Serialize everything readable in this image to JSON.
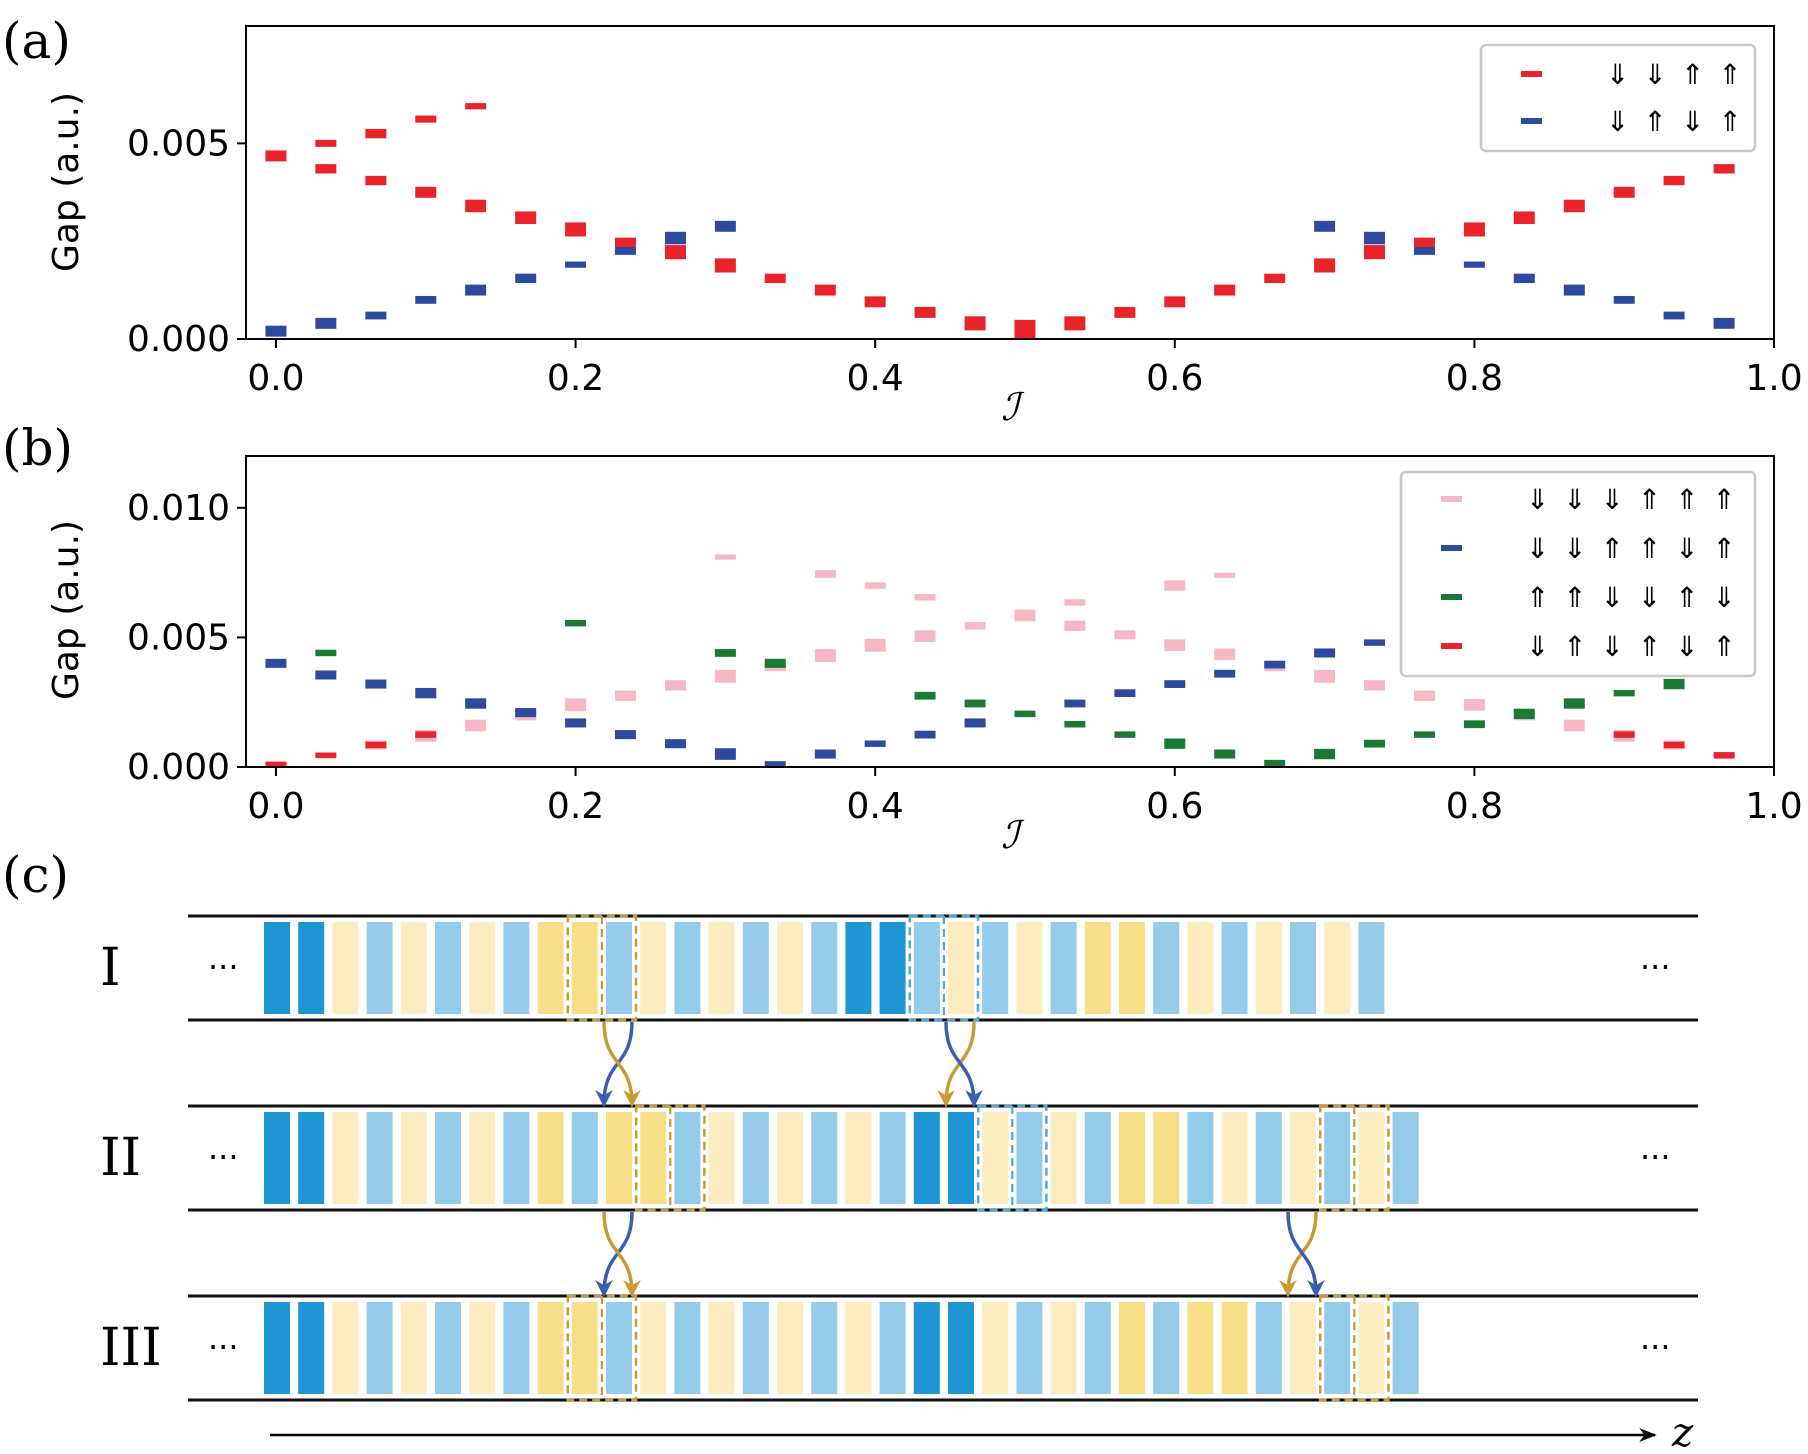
{
  "panel_labels": {
    "a": "(a)",
    "b": "(b)",
    "c": "(c)"
  },
  "chart_data": [
    {
      "type": "scatter",
      "id": "a",
      "title": "",
      "xlabel": "ℐ",
      "ylabel": "Gap (a.u.)",
      "xlim": [
        -0.02,
        1.0
      ],
      "ylim": [
        0,
        0.008
      ],
      "xticks": [
        0.0,
        0.2,
        0.4,
        0.6,
        0.8,
        1.0
      ],
      "xtick_labels": [
        "0.0",
        "0.2",
        "0.4",
        "0.6",
        "0.8",
        "1.0"
      ],
      "yticks": [
        0.0,
        0.005
      ],
      "ytick_labels": [
        "0.000",
        "0.005"
      ],
      "legend_position": "top-right",
      "series": [
        {
          "name": "⇓ ⇓ ⇑ ⇑",
          "color": "#e8232a",
          "points": [
            [
              0.0,
              0.00468,
              0.00028
            ],
            [
              0.0333,
              0.005,
              0.00018
            ],
            [
              0.0333,
              0.00435,
              0.00024
            ],
            [
              0.0667,
              0.00525,
              0.00024
            ],
            [
              0.0667,
              0.00405,
              0.00024
            ],
            [
              0.1,
              0.00562,
              0.00018
            ],
            [
              0.1,
              0.00375,
              0.00028
            ],
            [
              0.1333,
              0.00595,
              0.00016
            ],
            [
              0.1333,
              0.0034,
              0.00032
            ],
            [
              0.1667,
              0.0031,
              0.00032
            ],
            [
              0.2,
              0.0028,
              0.00036
            ],
            [
              0.2333,
              0.00245,
              0.00028
            ],
            [
              0.2667,
              0.00222,
              0.00036
            ],
            [
              0.3,
              0.00188,
              0.00036
            ],
            [
              0.3333,
              0.00155,
              0.00024
            ],
            [
              0.3667,
              0.00125,
              0.00028
            ],
            [
              0.4,
              0.00095,
              0.00028
            ],
            [
              0.4333,
              0.00068,
              0.00028
            ],
            [
              0.4667,
              0.0004,
              0.00036
            ],
            [
              0.5,
              0.00025,
              0.00048
            ],
            [
              0.5333,
              0.0004,
              0.00036
            ],
            [
              0.5667,
              0.00068,
              0.00028
            ],
            [
              0.6,
              0.00095,
              0.00028
            ],
            [
              0.6333,
              0.00125,
              0.00028
            ],
            [
              0.6667,
              0.00155,
              0.00024
            ],
            [
              0.7,
              0.00188,
              0.00036
            ],
            [
              0.7333,
              0.00222,
              0.00036
            ],
            [
              0.7667,
              0.00245,
              0.00028
            ],
            [
              0.8,
              0.0028,
              0.00036
            ],
            [
              0.8333,
              0.0031,
              0.00032
            ],
            [
              0.8667,
              0.0034,
              0.00032
            ],
            [
              0.9,
              0.00375,
              0.00028
            ],
            [
              0.9333,
              0.00405,
              0.00024
            ],
            [
              0.9667,
              0.00435,
              0.00024
            ]
          ]
        },
        {
          "name": "⇓ ⇑ ⇓ ⇑",
          "color": "#2e4a9e",
          "points": [
            [
              0.0,
              0.0002,
              0.00028
            ],
            [
              0.0333,
              0.0004,
              0.00028
            ],
            [
              0.0667,
              0.0006,
              0.0002
            ],
            [
              0.1,
              0.001,
              0.0002
            ],
            [
              0.1333,
              0.00125,
              0.00028
            ],
            [
              0.1667,
              0.00155,
              0.00024
            ],
            [
              0.2,
              0.0019,
              0.00016
            ],
            [
              0.2333,
              0.00225,
              0.0002
            ],
            [
              0.2667,
              0.00258,
              0.00032
            ],
            [
              0.3,
              0.00288,
              0.00028
            ],
            [
              0.7,
              0.00288,
              0.00028
            ],
            [
              0.7333,
              0.00258,
              0.00032
            ],
            [
              0.7667,
              0.00225,
              0.0002
            ],
            [
              0.8,
              0.0019,
              0.00016
            ],
            [
              0.8333,
              0.00155,
              0.00024
            ],
            [
              0.8667,
              0.00125,
              0.00028
            ],
            [
              0.9,
              0.001,
              0.0002
            ],
            [
              0.9333,
              0.0006,
              0.0002
            ],
            [
              0.9667,
              0.0004,
              0.00028
            ]
          ]
        }
      ]
    },
    {
      "type": "scatter",
      "id": "b",
      "title": "",
      "xlabel": "ℐ",
      "ylabel": "Gap (a.u.)",
      "xlim": [
        -0.02,
        1.0
      ],
      "ylim": [
        0,
        0.012
      ],
      "xticks": [
        0.0,
        0.2,
        0.4,
        0.6,
        0.8,
        1.0
      ],
      "xtick_labels": [
        "0.0",
        "0.2",
        "0.4",
        "0.6",
        "0.8",
        "1.0"
      ],
      "yticks": [
        0.0,
        0.005,
        0.01
      ],
      "ytick_labels": [
        "0.000",
        "0.005",
        "0.010"
      ],
      "legend_position": "top-right",
      "series": [
        {
          "name": "⇓ ⇓ ⇓ ⇑ ⇑ ⇑",
          "color": "#f7b8c6",
          "points": [
            [
              0.0,
              0.0001,
              0.00025
            ],
            [
              0.0333,
              0.00045,
              0.00025
            ],
            [
              0.0667,
              0.00085,
              0.00035
            ],
            [
              0.1,
              0.0012,
              0.00045
            ],
            [
              0.1333,
              0.0016,
              0.00045
            ],
            [
              0.1667,
              0.002,
              0.0004
            ],
            [
              0.2,
              0.0024,
              0.0005
            ],
            [
              0.2333,
              0.00275,
              0.0004
            ],
            [
              0.2667,
              0.00315,
              0.0004
            ],
            [
              0.3,
              0.0035,
              0.0005
            ],
            [
              0.3,
              0.0081,
              0.0002
            ],
            [
              0.3333,
              0.00385,
              0.0003
            ],
            [
              0.3667,
              0.0043,
              0.0005
            ],
            [
              0.3667,
              0.00745,
              0.0003
            ],
            [
              0.4,
              0.0047,
              0.0005
            ],
            [
              0.4,
              0.007,
              0.00025
            ],
            [
              0.4333,
              0.00505,
              0.00045
            ],
            [
              0.4333,
              0.00655,
              0.00025
            ],
            [
              0.4667,
              0.00545,
              0.0003
            ],
            [
              0.5,
              0.00585,
              0.00045
            ],
            [
              0.5333,
              0.00545,
              0.0004
            ],
            [
              0.5333,
              0.00635,
              0.00025
            ],
            [
              0.5667,
              0.0051,
              0.00035
            ],
            [
              0.6,
              0.0047,
              0.00045
            ],
            [
              0.6,
              0.007,
              0.0004
            ],
            [
              0.6333,
              0.00435,
              0.00045
            ],
            [
              0.6333,
              0.0074,
              0.0002
            ],
            [
              0.6667,
              0.00385,
              0.0003
            ],
            [
              0.7,
              0.0035,
              0.0005
            ],
            [
              0.7333,
              0.00315,
              0.0004
            ],
            [
              0.7667,
              0.00275,
              0.0004
            ],
            [
              0.8,
              0.0024,
              0.00045
            ],
            [
              0.8333,
              0.002,
              0.0004
            ],
            [
              0.8667,
              0.0016,
              0.00045
            ],
            [
              0.9,
              0.0012,
              0.00045
            ],
            [
              0.9333,
              0.00085,
              0.00035
            ],
            [
              0.9667,
              0.00045,
              0.00025
            ]
          ]
        },
        {
          "name": "⇓ ⇓ ⇑ ⇑ ⇓ ⇑",
          "color": "#2e4a9e",
          "points": [
            [
              0.0,
              0.004,
              0.00035
            ],
            [
              0.0333,
              0.00355,
              0.00035
            ],
            [
              0.0667,
              0.0032,
              0.00035
            ],
            [
              0.1,
              0.00285,
              0.0004
            ],
            [
              0.1333,
              0.00245,
              0.0004
            ],
            [
              0.1667,
              0.0021,
              0.00035
            ],
            [
              0.2,
              0.0017,
              0.00035
            ],
            [
              0.2333,
              0.00125,
              0.00035
            ],
            [
              0.2667,
              0.0009,
              0.00035
            ],
            [
              0.3,
              0.0005,
              0.00045
            ],
            [
              0.3333,
              0.0001,
              0.00025
            ],
            [
              0.3667,
              0.0005,
              0.00035
            ],
            [
              0.4,
              0.0009,
              0.00025
            ],
            [
              0.4333,
              0.00125,
              0.0003
            ],
            [
              0.4667,
              0.0017,
              0.00035
            ],
            [
              0.5333,
              0.00245,
              0.0003
            ],
            [
              0.5667,
              0.00285,
              0.0003
            ],
            [
              0.6,
              0.0032,
              0.0003
            ],
            [
              0.6333,
              0.0036,
              0.0003
            ],
            [
              0.6667,
              0.00395,
              0.0003
            ],
            [
              0.7,
              0.0044,
              0.00035
            ],
            [
              0.7333,
              0.0048,
              0.00025
            ]
          ]
        },
        {
          "name": "⇑ ⇑ ⇓ ⇓ ⇑ ⇓",
          "color": "#1a7a34",
          "points": [
            [
              0.0333,
              0.0044,
              0.00025
            ],
            [
              0.2,
              0.00555,
              0.00025
            ],
            [
              0.3,
              0.0044,
              0.0003
            ],
            [
              0.3333,
              0.004,
              0.00035
            ],
            [
              0.4333,
              0.00275,
              0.0003
            ],
            [
              0.4667,
              0.00245,
              0.0003
            ],
            [
              0.5,
              0.00205,
              0.00025
            ],
            [
              0.5333,
              0.00165,
              0.00025
            ],
            [
              0.5667,
              0.00125,
              0.00025
            ],
            [
              0.6,
              0.0009,
              0.0004
            ],
            [
              0.6333,
              0.0005,
              0.00035
            ],
            [
              0.6667,
              0.00015,
              0.00025
            ],
            [
              0.7,
              0.0005,
              0.0004
            ],
            [
              0.7333,
              0.0009,
              0.0003
            ],
            [
              0.7667,
              0.00125,
              0.00025
            ],
            [
              0.8,
              0.00165,
              0.0003
            ],
            [
              0.8333,
              0.00205,
              0.0004
            ],
            [
              0.8667,
              0.00245,
              0.0004
            ],
            [
              0.9,
              0.00285,
              0.00025
            ],
            [
              0.9333,
              0.0032,
              0.0004
            ]
          ]
        },
        {
          "name": "⇓ ⇑ ⇓ ⇑ ⇓ ⇑",
          "color": "#e8232a",
          "points": [
            [
              0.0,
              0.0001,
              0.0002
            ],
            [
              0.0333,
              0.00045,
              0.0002
            ],
            [
              0.0667,
              0.00085,
              0.00025
            ],
            [
              0.1,
              0.00125,
              0.00025
            ],
            [
              0.9,
              0.00125,
              0.00025
            ],
            [
              0.9333,
              0.00085,
              0.00025
            ],
            [
              0.9667,
              0.00045,
              0.00025
            ]
          ]
        }
      ]
    }
  ],
  "diagram": {
    "rows": [
      {
        "label": "I",
        "cells": "DDyxyxyxYYxyxyxyxDDxyxyxYYxyxyxyx",
        "boxes": [
          {
            "start": 9,
            "kind": "yellow"
          },
          {
            "start": 19,
            "kind": "blue"
          }
        ]
      },
      {
        "label": "II",
        "cells": "DDyxyxyxYxYYxyxyxyxDDyxyxYYxyxyxyx",
        "boxes": [
          {
            "start": 11,
            "kind": "yellow"
          },
          {
            "start": 21,
            "kind": "blue"
          },
          {
            "start": 31,
            "kind": "yellow"
          }
        ]
      },
      {
        "label": "III",
        "cells": "DDyxyxyxYYxyxyxyxyxDDyxyxYxYYxyxyx",
        "boxes": [
          {
            "start": 9,
            "kind": "yellow"
          },
          {
            "start": 31,
            "kind": "yellow"
          }
        ]
      }
    ],
    "ellipsis": "···",
    "axis_label": "z",
    "colors": {
      "dark_blue": "#1f95d3",
      "light_blue": "#93cbe9",
      "light_yellow": "#fdecc0",
      "yellow": "#f8df87",
      "yellow_box": "#c99a32",
      "blue_box": "#4aa8dc",
      "arrow_blue": "#3a5db0",
      "arrow_gold": "#c99a32"
    }
  }
}
